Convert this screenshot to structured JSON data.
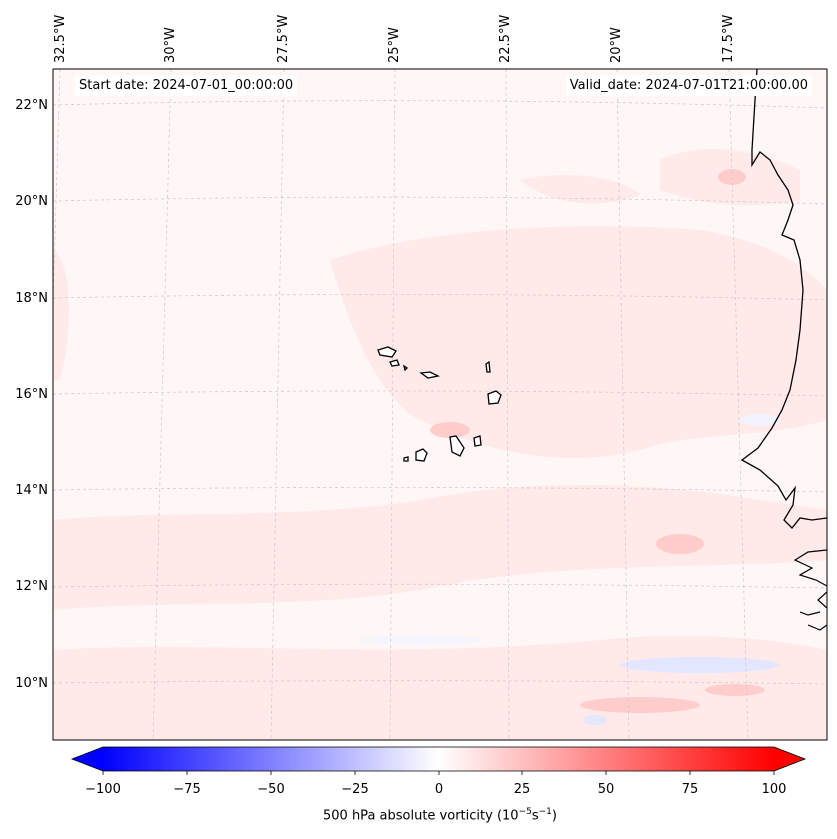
{
  "map": {
    "start_date": "Start date: 2024-07-01_00:00:00",
    "valid_date": "Valid_date: 2024-07-01T21:00:00.00",
    "lon_labels": [
      "32.5°W",
      "30°W",
      "27.5°W",
      "25°W",
      "22.5°W",
      "20°W",
      "17.5°W"
    ],
    "lat_labels": [
      "22°N",
      "20°N",
      "18°N",
      "16°N",
      "14°N",
      "12°N",
      "10°N"
    ],
    "colorbar": {
      "ticks": [
        "−100",
        "−75",
        "−50",
        "−25",
        "0",
        "25",
        "50",
        "75",
        "100"
      ],
      "label_prefix": "500 hPa absolute vorticity (10",
      "label_exp1": "−5",
      "label_mid": "s",
      "label_exp2": "−1",
      "label_suffix": ")",
      "min": -100,
      "max": 100
    },
    "colors": {
      "negative": "#0000ff",
      "neutral": "#ffffff",
      "positive": "#ff0000",
      "coastline": "#000000",
      "gridline": "#c8c8c8"
    }
  }
}
